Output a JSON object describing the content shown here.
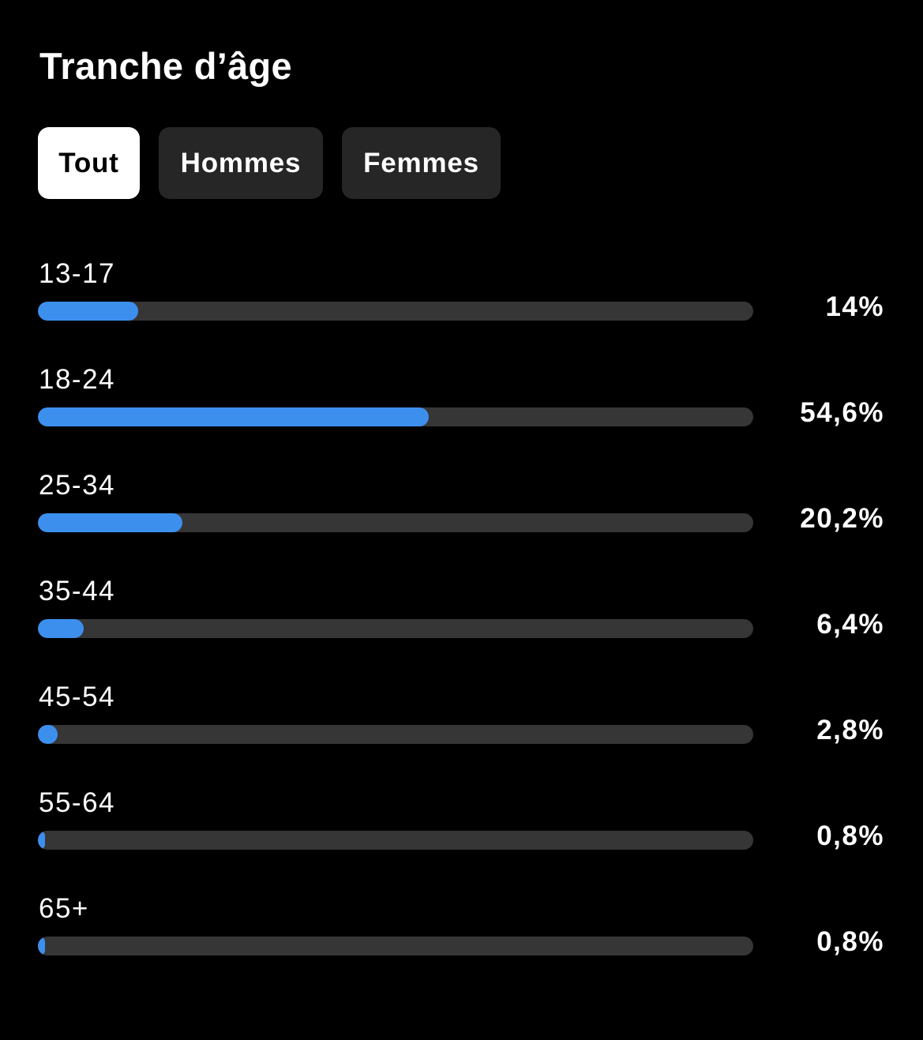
{
  "header": {
    "title": "Tranche d’âge"
  },
  "tabs": [
    {
      "label": "Tout",
      "active": true
    },
    {
      "label": "Hommes",
      "active": false
    },
    {
      "label": "Femmes",
      "active": false
    }
  ],
  "colors": {
    "background": "#000000",
    "bar_fill": "#3d8fee",
    "bar_track": "#363636",
    "tab_active_bg": "#ffffff",
    "tab_inactive_bg": "#262626"
  },
  "chart_data": {
    "type": "bar",
    "orientation": "horizontal",
    "categories": [
      "13-17",
      "18-24",
      "25-34",
      "35-44",
      "45-54",
      "55-64",
      "65+"
    ],
    "values": [
      14,
      54.6,
      20.2,
      6.4,
      2.8,
      0.8,
      0.8
    ],
    "value_labels": [
      "14%",
      "54,6%",
      "20,2%",
      "6,4%",
      "2,8%",
      "0,8%",
      "0,8%"
    ],
    "xlim": [
      0,
      100
    ]
  }
}
